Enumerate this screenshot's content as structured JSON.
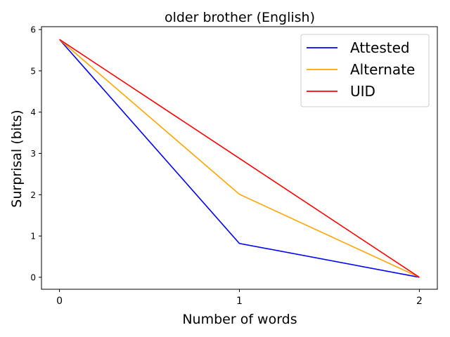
{
  "chart_data": {
    "type": "line",
    "title": "older brother (English)",
    "xlabel": "Number of words",
    "ylabel": "Surprisal (bits)",
    "x": [
      0,
      1,
      2
    ],
    "xticks": [
      "0",
      "1",
      "2"
    ],
    "yticks": [
      "0",
      "1",
      "2",
      "3",
      "4",
      "5",
      "6"
    ],
    "xlim": [
      -0.1,
      2.1
    ],
    "ylim": [
      -0.29,
      6.07
    ],
    "grid": false,
    "legend_position": "top-right",
    "series": [
      {
        "name": "Attested",
        "color": "#0000ff",
        "values": [
          5.76,
          0.82,
          0.0
        ]
      },
      {
        "name": "Alternate",
        "color": "#ffa500",
        "values": [
          5.76,
          2.01,
          0.0
        ]
      },
      {
        "name": "UID",
        "color": "#ff0000",
        "values": [
          5.76,
          2.88,
          0.0
        ]
      }
    ]
  }
}
